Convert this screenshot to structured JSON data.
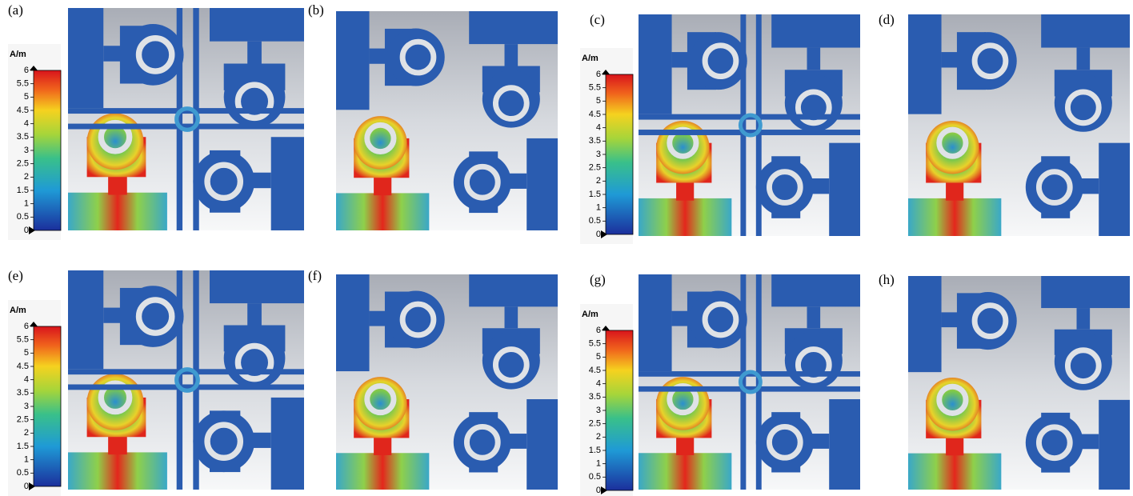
{
  "panels": [
    {
      "label": "(a)"
    },
    {
      "label": "(b)"
    },
    {
      "label": "(c)"
    },
    {
      "label": "(d)"
    },
    {
      "label": "(e)"
    },
    {
      "label": "(f)"
    },
    {
      "label": "(g)"
    },
    {
      "label": "(h)"
    }
  ],
  "colorbars": [
    {
      "unit": "A/m",
      "ticks": [
        0,
        0.5,
        1,
        1.5,
        2,
        2.5,
        3,
        3.5,
        4,
        4.5,
        5,
        5.5,
        6
      ]
    },
    {
      "unit": "A/m",
      "ticks": [
        0,
        0.5,
        1,
        1.5,
        2,
        2.5,
        3,
        3.5,
        4,
        4.5,
        5,
        5.5,
        6
      ]
    },
    {
      "unit": "A/m",
      "ticks": [
        0,
        0.5,
        1,
        1.5,
        2,
        2.5,
        3,
        3.5,
        4,
        4.5,
        5,
        5.5,
        6
      ]
    },
    {
      "unit": "A/m",
      "ticks": [
        0,
        0.5,
        1,
        1.5,
        2,
        2.5,
        3,
        3.5,
        4,
        4.5,
        5,
        5.5,
        6
      ]
    }
  ]
}
